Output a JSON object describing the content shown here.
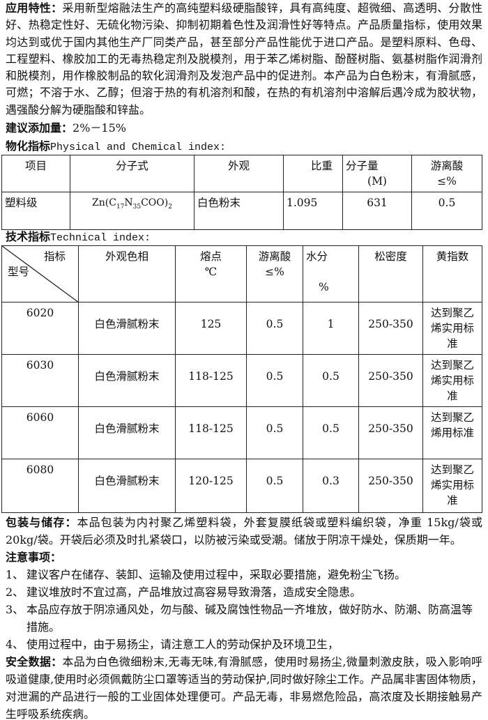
{
  "application": {
    "label": "应用特性：",
    "text": "采用新型熔融法生产的高纯塑料级硬脂酸锌，具有高纯度、超微细、高透明、分散性好、热稳定性好、无硫化物污染、抑制初期着色性及润滑性好等特点。产品质量指标，使用效果均达到或优于国内其他生产厂同类产品，甚至部分产品性能优于进口产品。是塑料原料、色母、工程塑料、橡胶加工的无毒热稳定剂及脱模剂，用于苯乙烯树脂、酚醛树脂、氨基树脂作润滑剂和脱模剂，用作橡胶制品的软化润滑剂及发泡产品中的促进剂。本产品为白色粉末，有滑腻感，可燃；不溶于水、乙醇；但溶于热的有机溶剂和酸，在热的有机溶剂中溶解后遇冷成为胶状物，遇强酸分解为硬脂酸和锌盐。"
  },
  "dosage": {
    "label": "建议添加量：",
    "text": "2%－15%"
  },
  "physical": {
    "title_cn": "物化指标",
    "title_en": "Physical and Chemical index:",
    "headers": [
      "项目",
      "分子式",
      "外观",
      "比重",
      "分子量",
      "(M)",
      "游离酸",
      "≤%"
    ],
    "row": {
      "grade": "塑料级",
      "formula_pre": "Zn(C",
      "sub1": "17",
      "formula_mid": "N",
      "sub2": "35",
      "formula_post": "COO)",
      "sub3": "2",
      "appearance": "白色粉末",
      "gravity": "1.095",
      "mw": "631",
      "acid": "0.5"
    }
  },
  "technical": {
    "title_cn": "技术指标",
    "title_en": "Technical index:",
    "headers": {
      "index": "指标",
      "model": "型号",
      "appearance": "外观色相",
      "melting": "熔点",
      "melting_unit": "℃",
      "acid": "游离酸",
      "acid_unit": "≤%",
      "water": "水分",
      "water_unit": "%",
      "density": "松密度",
      "yellow": "黄指数"
    },
    "rows": [
      {
        "model": "6020",
        "appearance": "白色滑腻粉末",
        "melting": "125",
        "acid": "0.5",
        "water": "1",
        "density": "250-350",
        "yellow": "达到聚乙烯实用标准"
      },
      {
        "model": "6030",
        "appearance": "白色滑腻粉末",
        "melting": "118-125",
        "acid": "0.5",
        "water": "0.5",
        "density": "250-350",
        "yellow": "达到聚乙烯实用标准"
      },
      {
        "model": "6060",
        "appearance": "白色滑腻粉末",
        "melting": "118-125",
        "acid": "0.5",
        "water": "0.5",
        "density": "250-350",
        "yellow": "达到聚乙烯用标准"
      },
      {
        "model": "6080",
        "appearance": "白色滑腻粉末",
        "melting": "120-125",
        "acid": "0.5",
        "water": "0.3",
        "density": "250-350",
        "yellow": "达到聚乙烯实用标准"
      }
    ]
  },
  "packaging": {
    "label": "包装与储存：",
    "text": "本品包装为内衬聚乙烯塑料袋，外套复膜纸袋或塑料编织袋，净重 15kg/袋或20kg/袋。开袋后必须及时扎紧袋口，以防被污染或受潮。储放于阴凉干燥处，保质期一年。"
  },
  "notes": {
    "label": "注意事项：",
    "items": [
      {
        "n": "1、",
        "text": "建议客户在储存、装卸、运输及使用过程中，采取必要措施，避免粉尘飞扬。"
      },
      {
        "n": "2、",
        "text": "建议堆放时不宜过高，产品堆放过高容易导致滑落，造成安全隐患。"
      },
      {
        "n": "3、",
        "text": "本品应存放于阴凉通风处，勿与酸、碱及腐蚀性物品一齐堆放，做好防水、防潮、防高温等措施。"
      },
      {
        "n": "4、",
        "text": "使用过程中，由于易扬尘，请注意工人的劳动保护及环境卫生，"
      }
    ]
  },
  "safety": {
    "label": "安全数据：",
    "text": "本品为白色微细粉末,无毒无味,有滑腻感，使用时易扬尘,微量刺激皮肤，吸入影响呼吸道健康,使用时必须佩戴防尘口罩等适当的劳动保护,同时做好除尘工作。产品属非害固体物质，对泄漏的产品进行一般的工业固体处理便可。产品无毒，非易燃危险品，高浓度及长期接触易产生呼吸系统疾病。"
  }
}
